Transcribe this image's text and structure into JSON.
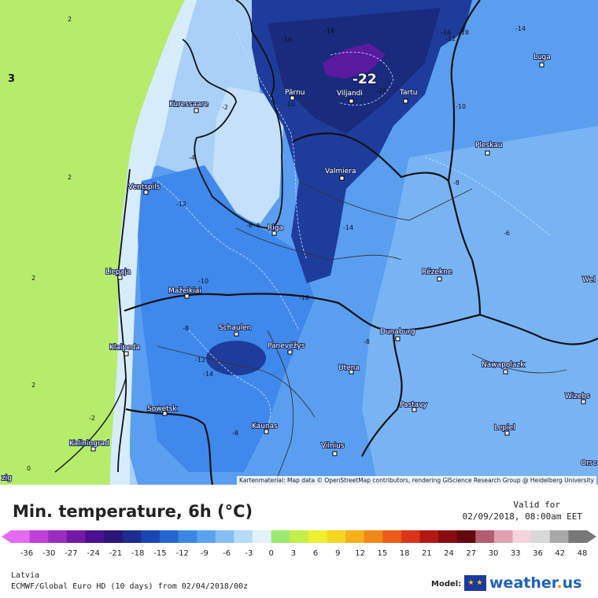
{
  "map": {
    "attribution": "Kartenmaterial: Map data © OpenStreetMap contributors, rendering GIScience Research Group @ Heidelberg University",
    "max_label": "-22",
    "cities": [
      {
        "name": "Kuressaare"
      },
      {
        "name": "Pärnu"
      },
      {
        "name": "Viljandi"
      },
      {
        "name": "Tartu"
      },
      {
        "name": "Luga"
      },
      {
        "name": "Pleskau"
      },
      {
        "name": "Valmiera"
      },
      {
        "name": "Ventspils"
      },
      {
        "name": "Riga"
      },
      {
        "name": "Liepaja"
      },
      {
        "name": "Mažeikiai"
      },
      {
        "name": "Rēzekne"
      },
      {
        "name": "Schaulen"
      },
      {
        "name": "Panevėžys"
      },
      {
        "name": "Dunaburg"
      },
      {
        "name": "Klaipeda"
      },
      {
        "name": "Utena"
      },
      {
        "name": "Nawapolazk"
      },
      {
        "name": "Sowetsk"
      },
      {
        "name": "Kaunas"
      },
      {
        "name": "Pastavy"
      },
      {
        "name": "Wizebs"
      },
      {
        "name": "Kaliningrad"
      },
      {
        "name": "Lepiel"
      },
      {
        "name": "Vilnius"
      },
      {
        "name": "Orsc"
      },
      {
        "name": "Wel"
      },
      {
        "name": "zig"
      }
    ],
    "isolines": [
      "2",
      "2",
      "2",
      "2",
      "-2",
      "-2",
      "-4",
      "-6",
      "-6",
      "-6",
      "-8",
      "-8",
      "-8",
      "-8",
      "-10",
      "-10",
      "-10",
      "-10",
      "-12",
      "-12",
      "-12",
      "-14",
      "-14",
      "-14",
      "-16",
      "-18",
      "-20",
      "-16",
      "-18",
      "3",
      "0"
    ]
  },
  "footer": {
    "title": "Min. temperature, 6h (°C)",
    "valid_label": "Valid for",
    "valid_date": "02/09/2018, 08:00am EET",
    "region": "Latvia",
    "model": "ECMWF/Global Euro HD (10 days) from 02/04/2018/00z",
    "model_label": "Model:",
    "brand_main": "weather",
    "brand_dot": ".",
    "brand_tld": "us",
    "flag_glyph": "★ ★"
  },
  "scale": {
    "ticks": [
      "-36",
      "-30",
      "-27",
      "-24",
      "-21",
      "-18",
      "-15",
      "-12",
      "-9",
      "-6",
      "-3",
      "0",
      "3",
      "6",
      "9",
      "12",
      "15",
      "18",
      "21",
      "24",
      "27",
      "30",
      "33",
      "36",
      "42",
      "48"
    ],
    "colors": [
      "#e66bf0",
      "#c040d8",
      "#9a2cc0",
      "#7418a8",
      "#4a1090",
      "#2c1478",
      "#1c2c90",
      "#1a46b4",
      "#2366d0",
      "#3a86e4",
      "#5aa2ee",
      "#84bef4",
      "#b4dcf8",
      "#e2f2fc",
      "#9aea70",
      "#c4ee48",
      "#eef030",
      "#f4d820",
      "#f4b018",
      "#f08818",
      "#ec5c18",
      "#dc3418",
      "#b41812",
      "#8a0c10",
      "#640810",
      "#b45c70",
      "#e0a0b0",
      "#f4d4dc",
      "#d8d8d8",
      "#a8a8a8",
      "#787878"
    ]
  }
}
